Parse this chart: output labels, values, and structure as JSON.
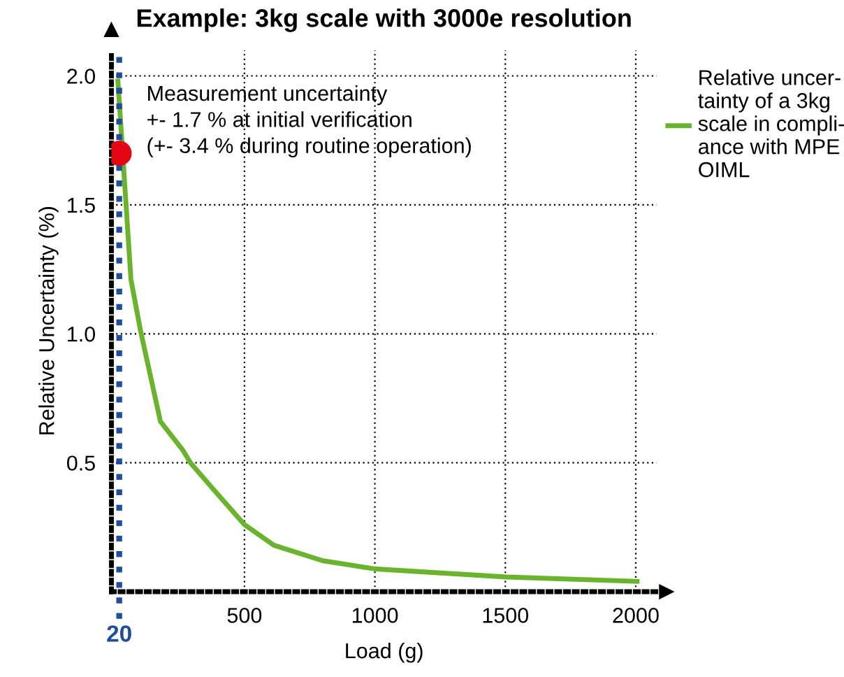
{
  "chart_data": {
    "type": "line",
    "title": "Example: 3kg scale with 3000e resolution",
    "xlabel": "Load (g)",
    "ylabel": "Relative Uncertainty (%)",
    "xlim": [
      -10,
      2080
    ],
    "ylim": [
      0,
      2.1
    ],
    "xticks": [
      500,
      1000,
      1500,
      2000
    ],
    "yticks": [
      0.5,
      {
        "value": 1,
        "label": "1.0"
      },
      1.5,
      {
        "value": 2,
        "label": "2.0"
      }
    ],
    "grid": true,
    "legend": "right",
    "series": [
      {
        "name": "Relative uncer-\ntainty of a 3kg\nscale in compli-\nance with MPE\nOIML",
        "color": "#6ab42d",
        "x": [
          15,
          65,
          102,
          178,
          263,
          293,
          387,
          500,
          613,
          800,
          1003,
          1503,
          2005
        ],
        "values": [
          1.98,
          1.21,
          1.01,
          0.66,
          0.55,
          0.5,
          0.39,
          0.26,
          0.18,
          0.12,
          0.088,
          0.057,
          0.04
        ]
      },
      {
        "type": "scatter",
        "color": "#e30613",
        "x": [
          20
        ],
        "values": [
          1.7
        ],
        "marker": "circle"
      }
    ],
    "ref_lines": [
      {
        "axis": "x",
        "value": 20,
        "label": "20",
        "color": "#1f4e9c",
        "line_style": "dotted"
      }
    ],
    "annotations": [
      {
        "text": "Measurement uncertainty\n+- 1.7 % at initial verification\n(+- 3.4 % during routine operation)",
        "x": 20,
        "y": 1.7
      }
    ]
  }
}
